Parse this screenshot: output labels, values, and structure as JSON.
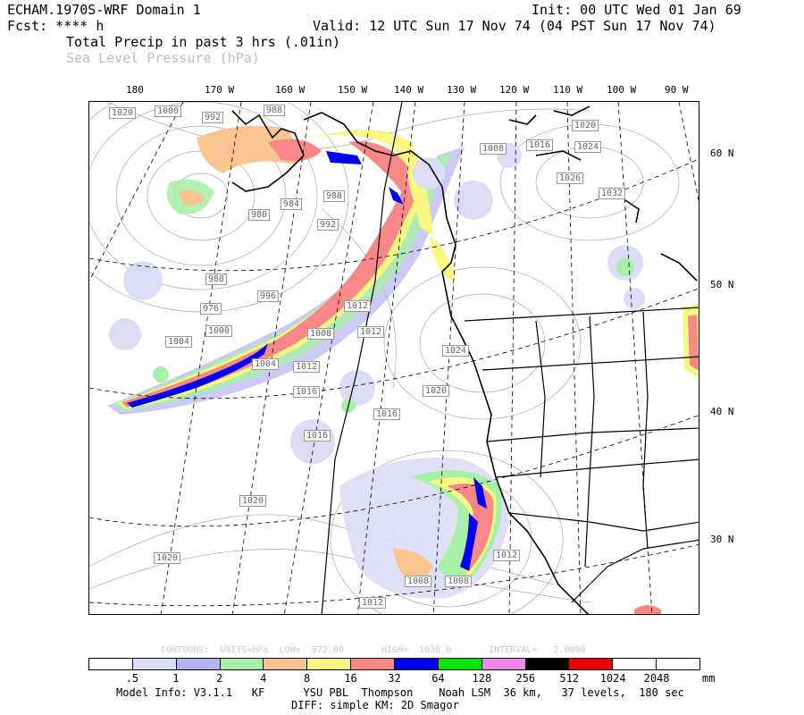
{
  "header": {
    "model": "ECHAM.1970S-WRF Domain 1",
    "init": "Init: 00 UTC Wed 01 Jan 69",
    "fcst": "Fcst: **** h",
    "valid": "Valid: 12 UTC Sun 17 Nov 74 (04 PST Sun 17 Nov 74)",
    "field1": "Total Precip in past 3 hrs (.01in)",
    "field2": "Sea Level Pressure (hPa)"
  },
  "longitude_labels": [
    "180",
    "170 W",
    "160 W",
    "150 W",
    "140 W",
    "130 W",
    "120 W",
    "110 W",
    "100 W",
    "90 W"
  ],
  "latitude_labels": [
    "60 N",
    "50 N",
    "40 N",
    "30 N"
  ],
  "pressure_labels": [
    "1020",
    "1000",
    "992",
    "988",
    "1020",
    "1008",
    "1016",
    "1024",
    "1026",
    "1032",
    "988",
    "984",
    "980",
    "992",
    "988",
    "996",
    "976",
    "1012",
    "1000",
    "1004",
    "1008",
    "1004",
    "1024",
    "1012",
    "1012",
    "1016",
    "1020",
    "1016",
    "1016",
    "1020",
    "1020",
    "1012",
    "1008",
    "1008",
    "1012"
  ],
  "contours_info": "CONTOURS:  UNITS=hPa  LOW=  972.00       HIGH=  1036.0       INTERVAL=   2.0000",
  "colorbar": {
    "colors": [
      "#ffffff",
      "#dcdcf6",
      "#b4b4f0",
      "#a8f0a8",
      "#f8c490",
      "#f8f880",
      "#f88888",
      "#0000f0",
      "#00e800",
      "#f088f0",
      "#000000",
      "#f00000",
      "#ffffff",
      "#ffffff"
    ],
    "labels": [
      ".5",
      "1",
      "2",
      "4",
      "8",
      "16",
      "32",
      "64",
      "128",
      "256",
      "512",
      "1024",
      "2048"
    ],
    "units": "mm"
  },
  "footer": {
    "line1": "Model Info: V3.1.1   KF      YSU PBL  Thompson    Noah LSM  36 km,   37 levels,  180 sec",
    "line2": "DIFF: simple KM: 2D Smagor"
  }
}
